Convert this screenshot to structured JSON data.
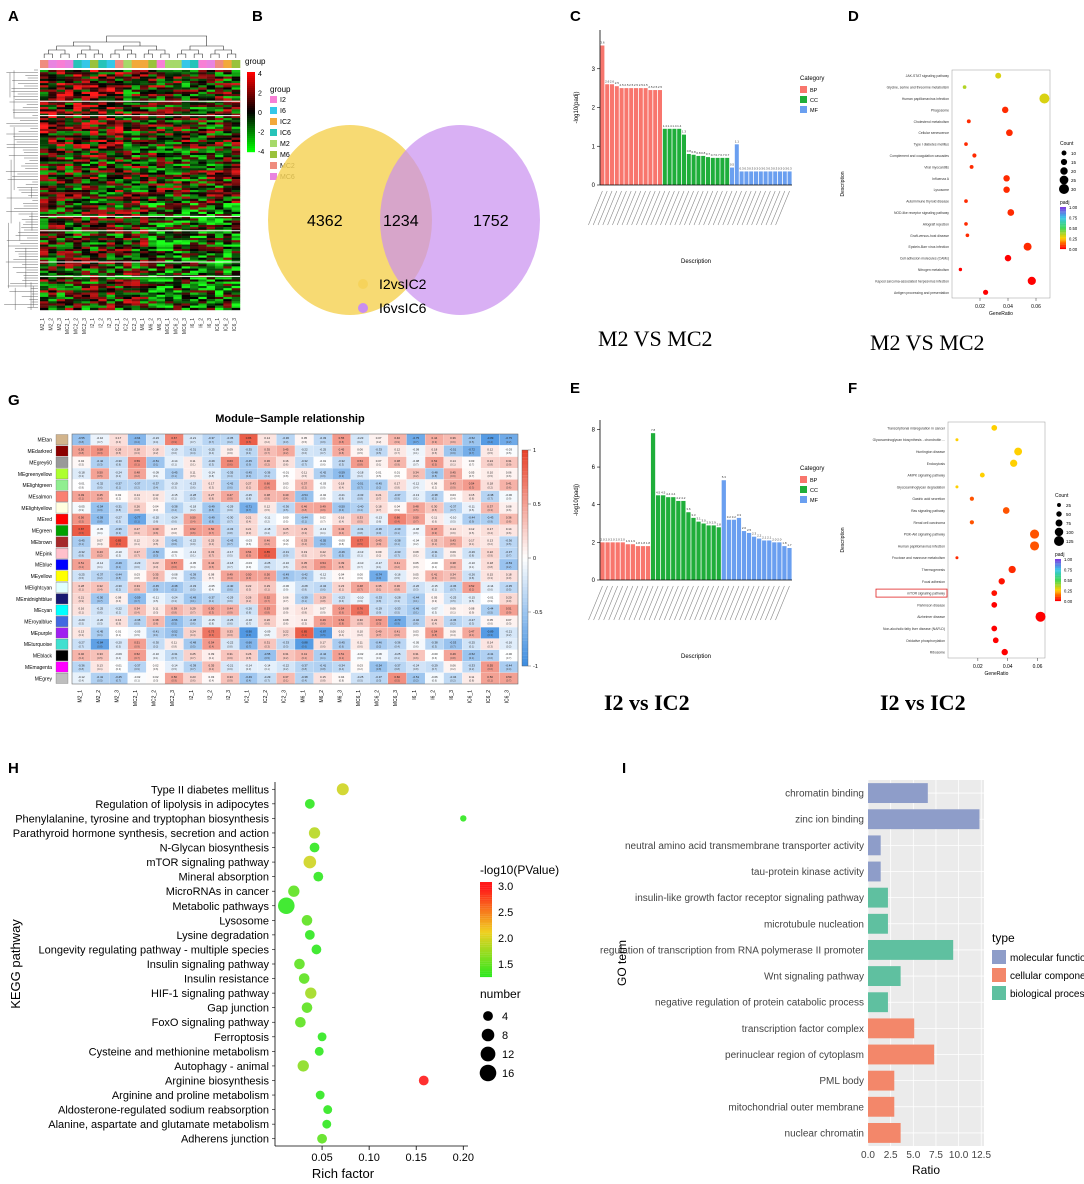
{
  "panels": {
    "A": "A",
    "B": "B",
    "C": "C",
    "D": "D",
    "G": "G",
    "E": "E",
    "F": "F",
    "H": "H",
    "I": "I"
  },
  "colors": {
    "bp": "#f8766d",
    "cc": "#1fae3a",
    "mf": "#6a9ff0",
    "mol_func": "#8e9dc9",
    "cell_comp": "#f3876a",
    "bio_proc": "#5fc0a0",
    "venn_left": "#f6d35b",
    "venn_right": "#c98ef0"
  },
  "captions": {
    "c": "M2 VS MC2",
    "d": "M2 VS MC2",
    "e": "I2 vs IC2",
    "f": "I2 vs IC2"
  },
  "chart_data": [
    {
      "id": "A",
      "type": "heatmap",
      "legend_title": "group",
      "scale_ticks": [
        "4",
        "2",
        "0",
        "-2",
        "-4"
      ],
      "groups": [
        {
          "name": "I2",
          "color": "#f77fd5"
        },
        {
          "name": "I6",
          "color": "#35c7e8"
        },
        {
          "name": "IC2",
          "color": "#f2a93b"
        },
        {
          "name": "IC6",
          "color": "#26c3b9"
        },
        {
          "name": "M2",
          "color": "#a6d96a"
        },
        {
          "name": "M6",
          "color": "#9ac23c"
        },
        {
          "name": "MC2",
          "color": "#ef8c7f"
        },
        {
          "name": "MC6",
          "color": "#e884e0"
        }
      ]
    },
    {
      "id": "B",
      "type": "venn",
      "left_value": "4362",
      "overlap_value": "1234",
      "right_value": "1752",
      "legend": [
        "I2vsIC2",
        "I6vsIC6"
      ]
    },
    {
      "id": "C",
      "type": "bar",
      "ylabel": "-log10(padj)",
      "xlabel": "Description",
      "legend_title": "Category",
      "legend": [
        "BP",
        "CC",
        "MF"
      ],
      "yticks": [
        "0",
        "1",
        "2",
        "3"
      ],
      "ylim": [
        0,
        4
      ],
      "series": [
        {
          "name": "BP",
          "values": [
            3.6,
            2.6,
            2.6,
            2.55,
            2.5,
            2.5,
            2.5,
            2.5,
            2.5,
            2.5,
            2.45,
            2.45,
            2.45
          ]
        },
        {
          "name": "CC",
          "values": [
            1.45,
            1.45,
            1.45,
            1.45,
            1.3,
            0.8,
            0.78,
            0.75,
            0.75,
            0.72,
            0.7,
            0.7,
            0.7,
            0.7
          ]
        },
        {
          "name": "MF",
          "values": [
            0.45,
            1.05,
            0.35,
            0.35,
            0.35,
            0.35,
            0.35,
            0.35,
            0.35,
            0.35,
            0.35,
            0.35,
            0.35
          ]
        }
      ]
    },
    {
      "id": "D",
      "type": "scatter",
      "xlabel": "GeneRatio",
      "ylabel": "Description",
      "xticks": [
        "0.02",
        "0.04",
        "0.06"
      ],
      "xlim": [
        0.0,
        0.07
      ],
      "size_title": "Count",
      "size_ticks": [
        "10",
        "15",
        "20",
        "25",
        "30"
      ],
      "color_title": "padj",
      "color_ticks": [
        "1.00",
        "0.75",
        "0.50",
        "0.25",
        "0.00"
      ],
      "points": [
        {
          "label": "JAK-STAT signaling pathway",
          "x": 0.033,
          "size": 14,
          "padj": 0.3
        },
        {
          "label": "Glycine, serine and threonine metabolism",
          "x": 0.009,
          "size": 5,
          "padj": 0.35
        },
        {
          "label": "Human papillomavirus infection",
          "x": 0.066,
          "size": 30,
          "padj": 0.3
        },
        {
          "label": "Phagosome",
          "x": 0.038,
          "size": 16,
          "padj": 0.05
        },
        {
          "label": "Cholesterol metabolism",
          "x": 0.012,
          "size": 6,
          "padj": 0.05
        },
        {
          "label": "Cellular senescence",
          "x": 0.041,
          "size": 17,
          "padj": 0.05
        },
        {
          "label": "Type I diabetes mellitus",
          "x": 0.01,
          "size": 5,
          "padj": 0.05
        },
        {
          "label": "Complement and coagulation cascades",
          "x": 0.016,
          "size": 7,
          "padj": 0.05
        },
        {
          "label": "Viral myocarditis",
          "x": 0.014,
          "size": 6,
          "padj": 0.05
        },
        {
          "label": "Influenza A",
          "x": 0.039,
          "size": 16,
          "padj": 0.05
        },
        {
          "label": "Lysosome",
          "x": 0.039,
          "size": 16,
          "padj": 0.05
        },
        {
          "label": "Autoimmune thyroid disease",
          "x": 0.01,
          "size": 5,
          "padj": 0.05
        },
        {
          "label": "NOD-like receptor signaling pathway",
          "x": 0.042,
          "size": 17,
          "padj": 0.05
        },
        {
          "label": "Allograft rejection",
          "x": 0.01,
          "size": 5,
          "padj": 0.05
        },
        {
          "label": "Graft-versus-host disease",
          "x": 0.011,
          "size": 5,
          "padj": 0.05
        },
        {
          "label": "Epstein-Barr virus infection",
          "x": 0.054,
          "size": 22,
          "padj": 0.05
        },
        {
          "label": "Cell adhesion molecules (CAMs)",
          "x": 0.04,
          "size": 16,
          "padj": 0.0
        },
        {
          "label": "Nitrogen metabolism",
          "x": 0.006,
          "size": 4,
          "padj": 0.0
        },
        {
          "label": "Kaposi sarcoma-associated herpesvirus infection",
          "x": 0.057,
          "size": 23,
          "padj": 0.0
        },
        {
          "label": "Antigen processing and presentation",
          "x": 0.024,
          "size": 11,
          "padj": 0.0
        }
      ]
    },
    {
      "id": "G",
      "type": "heatmap",
      "title": "Module−Sample relationship",
      "modules": [
        "MEtan",
        "MEdarkred",
        "MEgrey60",
        "MEgreenyellow",
        "MElightgreen",
        "MEsalmon",
        "MElightyellow",
        "MEred",
        "MEgreen",
        "MEbrown",
        "MEpink",
        "MEblue",
        "MEyellow",
        "MElightcyan",
        "MEmidnightblue",
        "MEcyan",
        "MEroyalblue",
        "MEpurple",
        "MEturquoise",
        "MEblack",
        "MEmagenta",
        "MEgrey"
      ],
      "module_colors": [
        "#d2b48c",
        "#8b0000",
        "#999999",
        "#adff2f",
        "#90ee90",
        "#fa8072",
        "#ffffe0",
        "#ff0000",
        "#00a000",
        "#a52a2a",
        "#ffc0cb",
        "#0000ff",
        "#ffff00",
        "#e0ffff",
        "#191970",
        "#00ffff",
        "#4169e1",
        "#a020f0",
        "#40e0d0",
        "#000000",
        "#ff00ff",
        "#bebebe"
      ],
      "samples": [
        "M2_1",
        "M2_2",
        "M2_3",
        "MC2_1",
        "MC2_2",
        "MC2_3",
        "I2_1",
        "I2_2",
        "I2_3",
        "IC2_1",
        "IC2_2",
        "IC2_3",
        "M6_1",
        "M6_2",
        "M6_3",
        "MC6_1",
        "MC6_2",
        "MC6_3",
        "I6_1",
        "I6_2",
        "I6_3",
        "IC6_1",
        "IC6_2",
        "IC6_3"
      ],
      "scale_ticks": [
        "1",
        "0.5",
        "0",
        "-0.5",
        "-1"
      ]
    },
    {
      "id": "E",
      "type": "bar",
      "ylabel": "-log10(padj)",
      "xlabel": "Description",
      "legend_title": "Category",
      "legend": [
        "BP",
        "CC",
        "MF"
      ],
      "yticks": [
        "0",
        "2",
        "4",
        "6",
        "8"
      ],
      "ylim": [
        0,
        8.5
      ],
      "series": [
        {
          "name": "BP",
          "values": [
            2.0,
            2.0,
            2.0,
            2.0,
            2.0,
            1.9,
            1.9,
            1.8,
            1.8,
            1.8
          ]
        },
        {
          "name": "CC",
          "values": [
            7.8,
            4.5,
            4.5,
            4.4,
            4.4,
            4.2,
            4.2,
            3.6,
            3.3,
            3.1,
            3.0,
            2.9,
            2.9,
            2.8
          ]
        },
        {
          "name": "MF",
          "values": [
            5.3,
            3.2,
            3.2,
            3.3,
            2.6,
            2.5,
            2.3,
            2.2,
            2.1,
            2.1,
            2.0,
            2.0,
            1.8,
            1.7
          ]
        }
      ]
    },
    {
      "id": "F",
      "type": "scatter",
      "xlabel": "GeneRatio",
      "ylabel": "Description",
      "xticks": [
        "0.02",
        "0.04",
        "0.06"
      ],
      "xlim": [
        0.0,
        0.065
      ],
      "size_title": "Count",
      "size_ticks": [
        "25",
        "50",
        "75",
        "100",
        "125"
      ],
      "color_title": "padj",
      "color_ticks": [
        "1.00",
        "0.75",
        "0.50",
        "0.25",
        "0.00"
      ],
      "highlight": "mTOR signaling pathway",
      "points": [
        {
          "label": "Transcriptional misregulation in cancer",
          "x": 0.031,
          "size": 55,
          "padj": 0.25
        },
        {
          "label": "Glycosaminoglycan biosynthesis - chondroitin ...",
          "x": 0.006,
          "size": 10,
          "padj": 0.25
        },
        {
          "label": "Huntington disease",
          "x": 0.047,
          "size": 90,
          "padj": 0.25
        },
        {
          "label": "Endocytosis",
          "x": 0.044,
          "size": 80,
          "padj": 0.25
        },
        {
          "label": "AMPK signaling pathway",
          "x": 0.023,
          "size": 40,
          "padj": 0.25
        },
        {
          "label": "Glycosaminoglycan degradation",
          "x": 0.006,
          "size": 10,
          "padj": 0.25
        },
        {
          "label": "Gastric acid secretion",
          "x": 0.016,
          "size": 30,
          "padj": 0.1
        },
        {
          "label": "Ras signaling pathway",
          "x": 0.039,
          "size": 70,
          "padj": 0.1
        },
        {
          "label": "Renal cell carcinoma",
          "x": 0.016,
          "size": 30,
          "padj": 0.1
        },
        {
          "label": "PI3K-Akt signaling pathway",
          "x": 0.058,
          "size": 110,
          "padj": 0.1
        },
        {
          "label": "Human papillomavirus infection",
          "x": 0.058,
          "size": 110,
          "padj": 0.1
        },
        {
          "label": "Fructose and mannose metabolism",
          "x": 0.006,
          "size": 10,
          "padj": 0.05
        },
        {
          "label": "Thermogenesis",
          "x": 0.043,
          "size": 80,
          "padj": 0.05
        },
        {
          "label": "Focal adhesion",
          "x": 0.036,
          "size": 65,
          "padj": 0.02
        },
        {
          "label": "mTOR signaling pathway",
          "x": 0.031,
          "size": 55,
          "padj": 0.02
        },
        {
          "label": "Parkinson disease",
          "x": 0.031,
          "size": 55,
          "padj": 0.0
        },
        {
          "label": "Alzheimer disease",
          "x": 0.062,
          "size": 125,
          "padj": 0.0
        },
        {
          "label": "Non-alcoholic fatty liver disease (NAFLD)",
          "x": 0.031,
          "size": 55,
          "padj": 0.0
        },
        {
          "label": "Oxidative phosphorylation",
          "x": 0.032,
          "size": 55,
          "padj": 0.0
        },
        {
          "label": "Ribosome",
          "x": 0.038,
          "size": 65,
          "padj": 0.0
        }
      ]
    },
    {
      "id": "H",
      "type": "scatter",
      "xlabel": "Rich factor",
      "ylabel": "KEGG pathway",
      "xticks": [
        "0.05",
        "0.10",
        "0.15",
        "0.20"
      ],
      "xlim": [
        0.0,
        0.205
      ],
      "color_title": "-log10(PValue)",
      "color_ticks": [
        "3.0",
        "2.5",
        "2.0",
        "1.5"
      ],
      "size_title": "number",
      "size_ticks": [
        "4",
        "8",
        "12",
        "16"
      ],
      "points": [
        {
          "label": "Type II diabetes mellitus",
          "x": 0.072,
          "number": 7,
          "logp": 2.0
        },
        {
          "label": "Regulation of lipolysis in adipocytes",
          "x": 0.037,
          "number": 4,
          "logp": 1.3
        },
        {
          "label": "Phenylalanine, tyrosine and tryptophan biosynthesis",
          "x": 0.2,
          "number": 1,
          "logp": 1.3
        },
        {
          "label": "Parathyroid hormone synthesis, secretion and action",
          "x": 0.042,
          "number": 6,
          "logp": 1.9
        },
        {
          "label": "N-Glycan biosynthesis",
          "x": 0.042,
          "number": 4,
          "logp": 1.3
        },
        {
          "label": "mTOR signaling pathway",
          "x": 0.037,
          "number": 8,
          "logp": 2.0
        },
        {
          "label": "Mineral absorption",
          "x": 0.046,
          "number": 4,
          "logp": 1.3
        },
        {
          "label": "MicroRNAs in cancer",
          "x": 0.02,
          "number": 6,
          "logp": 1.5
        },
        {
          "label": "Metabolic pathways",
          "x": 0.012,
          "number": 16,
          "logp": 1.3
        },
        {
          "label": "Lysosome",
          "x": 0.034,
          "number": 5,
          "logp": 1.5
        },
        {
          "label": "Lysine degradation",
          "x": 0.037,
          "number": 4,
          "logp": 1.3
        },
        {
          "label": "Longevity regulating pathway - multiple species",
          "x": 0.044,
          "number": 4,
          "logp": 1.3
        },
        {
          "label": "Insulin signaling pathway",
          "x": 0.026,
          "number": 5,
          "logp": 1.5
        },
        {
          "label": "Insulin resistance",
          "x": 0.031,
          "number": 5,
          "logp": 1.5
        },
        {
          "label": "HIF-1 signaling pathway",
          "x": 0.038,
          "number": 6,
          "logp": 1.8
        },
        {
          "label": "Gap junction",
          "x": 0.034,
          "number": 5,
          "logp": 1.5
        },
        {
          "label": "FoxO signaling pathway",
          "x": 0.027,
          "number": 5,
          "logp": 1.5
        },
        {
          "label": "Ferroptosis",
          "x": 0.05,
          "number": 3,
          "logp": 1.3
        },
        {
          "label": "Cysteine and methionine metabolism",
          "x": 0.047,
          "number": 3,
          "logp": 1.3
        },
        {
          "label": "Autophagy - animal",
          "x": 0.03,
          "number": 6,
          "logp": 1.7
        },
        {
          "label": "Arginine biosynthesis",
          "x": 0.158,
          "number": 4,
          "logp": 3.0
        },
        {
          "label": "Arginine and proline metabolism",
          "x": 0.048,
          "number": 3,
          "logp": 1.3
        },
        {
          "label": "Aldosterone-regulated sodium reabsorption",
          "x": 0.056,
          "number": 3,
          "logp": 1.3
        },
        {
          "label": "Alanine, aspartate and glutamate metabolism",
          "x": 0.055,
          "number": 3,
          "logp": 1.3
        },
        {
          "label": "Adherens junction",
          "x": 0.05,
          "number": 4,
          "logp": 1.5
        }
      ]
    },
    {
      "id": "I",
      "type": "bar",
      "orientation": "horizontal",
      "xlabel": "Ratio",
      "ylabel": "GO term",
      "xticks": [
        "0.0",
        "2.5",
        "5.0",
        "7.5",
        "10.0",
        "12.5"
      ],
      "xlim": [
        0,
        12.8
      ],
      "legend_title": "type",
      "legend": [
        "molecular function",
        "cellular component",
        "biological process"
      ],
      "bars": [
        {
          "label": "chromatin binding",
          "value": 6.6,
          "type": "molecular function"
        },
        {
          "label": "zinc ion binding",
          "value": 12.3,
          "type": "molecular function"
        },
        {
          "label": "neutral amino acid transmembrane transporter activity",
          "value": 1.4,
          "type": "molecular function"
        },
        {
          "label": "tau-protein kinase activity",
          "value": 1.4,
          "type": "molecular function"
        },
        {
          "label": "insulin-like growth factor receptor signaling pathway",
          "value": 2.2,
          "type": "biological process"
        },
        {
          "label": "microtubule nucleation",
          "value": 2.2,
          "type": "biological process"
        },
        {
          "label": "positive regulation of transcription from RNA polymerase II promoter",
          "value": 9.4,
          "type": "biological process"
        },
        {
          "label": "Wnt signaling pathway",
          "value": 3.6,
          "type": "biological process"
        },
        {
          "label": "negative regulation of protein catabolic process",
          "value": 2.2,
          "type": "biological process"
        },
        {
          "label": "transcription factor complex",
          "value": 5.1,
          "type": "cellular component"
        },
        {
          "label": "perinuclear region of cytoplasm",
          "value": 7.3,
          "type": "cellular component"
        },
        {
          "label": "PML body",
          "value": 2.9,
          "type": "cellular component"
        },
        {
          "label": "mitochondrial outer membrane",
          "value": 2.9,
          "type": "cellular component"
        },
        {
          "label": "nuclear chromatin",
          "value": 3.6,
          "type": "cellular component"
        }
      ]
    }
  ]
}
